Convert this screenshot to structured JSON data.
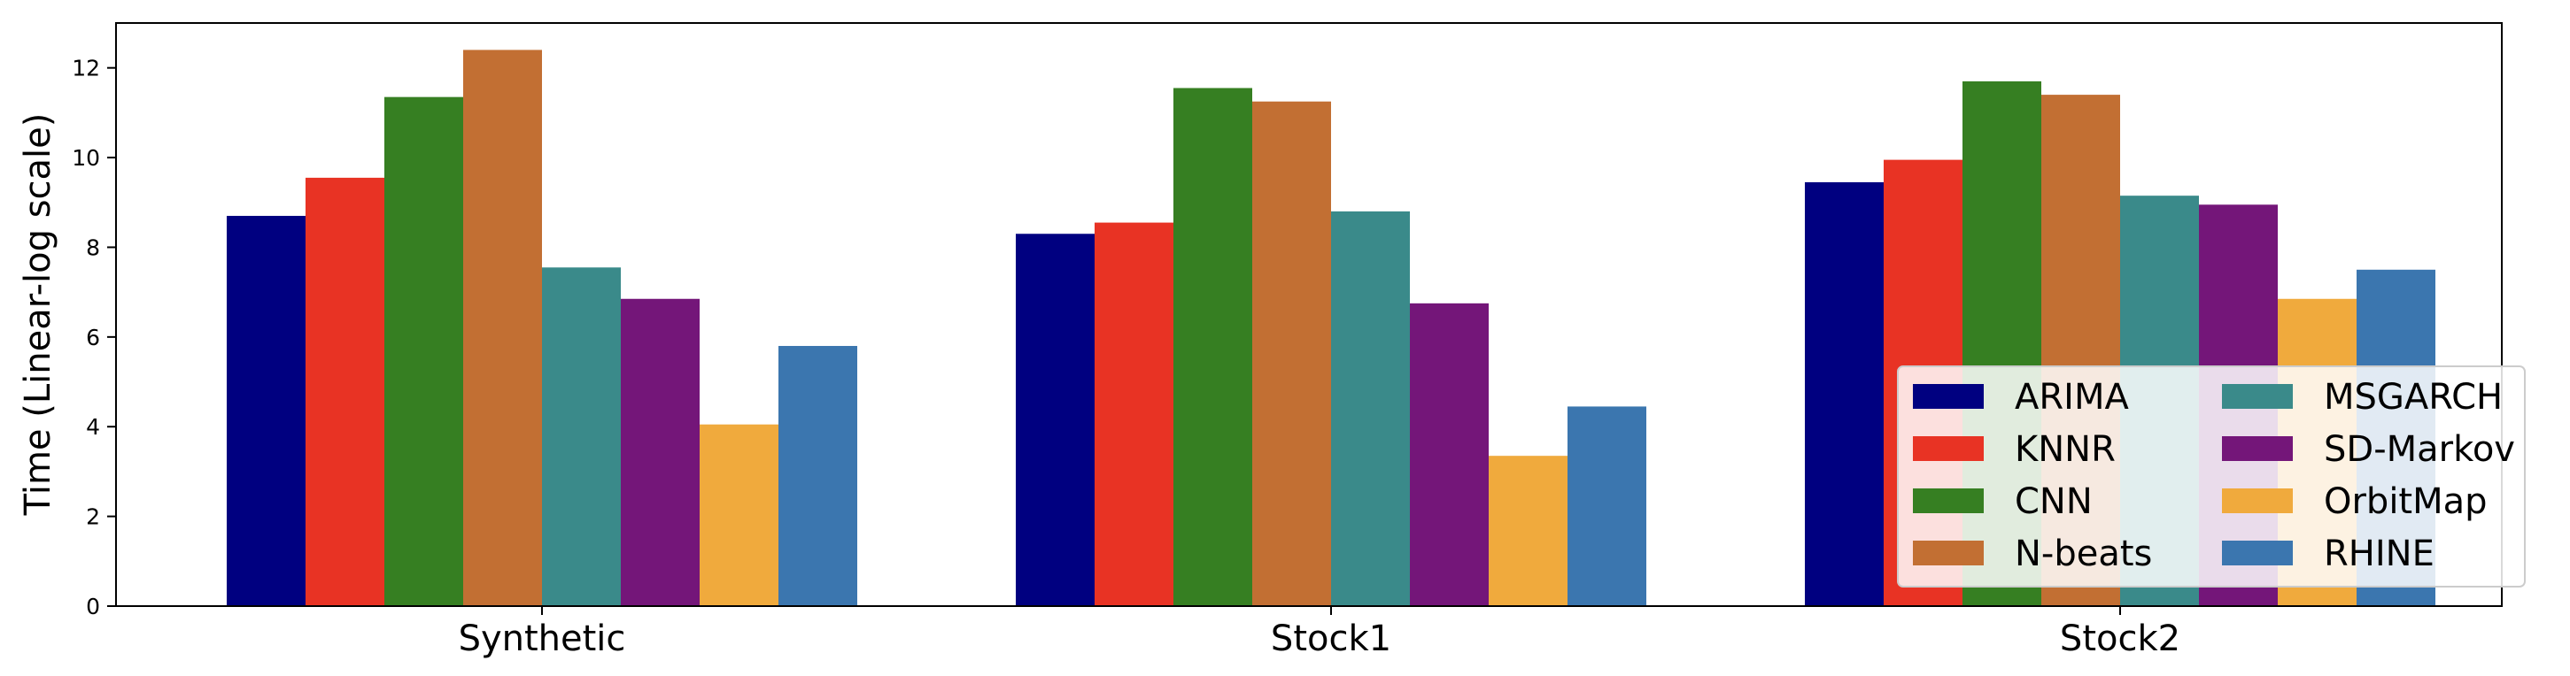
{
  "chart_data": {
    "type": "bar",
    "title": "",
    "xlabel": "",
    "ylabel": "Time (Linear-log scale)",
    "ylim": [
      0,
      13
    ],
    "yticks": [
      0,
      2,
      4,
      6,
      8,
      10,
      12
    ],
    "grid": false,
    "legend_position": "lower-right",
    "categories": [
      "Synthetic",
      "Stock1",
      "Stock2"
    ],
    "series": [
      {
        "name": "ARIMA",
        "color": "#000080",
        "values": [
          8.7,
          8.3,
          9.45
        ]
      },
      {
        "name": "KNNR",
        "color": "#e83324",
        "values": [
          9.55,
          8.55,
          9.95
        ]
      },
      {
        "name": "CNN",
        "color": "#367f22",
        "values": [
          11.35,
          11.55,
          11.7
        ]
      },
      {
        "name": "N-beats",
        "color": "#c26f33",
        "values": [
          12.4,
          11.25,
          11.4
        ]
      },
      {
        "name": "MSGARCH",
        "color": "#3a8a8a",
        "values": [
          7.55,
          8.8,
          9.15
        ]
      },
      {
        "name": "SD-Markov",
        "color": "#741679",
        "values": [
          6.85,
          6.75,
          8.95
        ]
      },
      {
        "name": "OrbitMap",
        "color": "#f0aa3d",
        "values": [
          4.05,
          3.35,
          6.85
        ]
      },
      {
        "name": "RHINE",
        "color": "#3b76af",
        "values": [
          5.8,
          4.45,
          7.5
        ]
      }
    ]
  }
}
